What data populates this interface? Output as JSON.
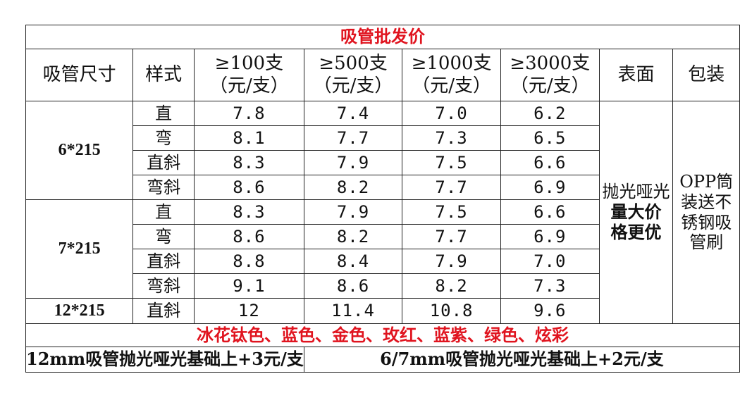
{
  "title": "吸管批发价",
  "headers": {
    "size": "吸管尺寸",
    "style": "样式",
    "tier1": "≥100支",
    "tier2": "≥500支",
    "tier3": "≥1000支",
    "tier4": "≥3000支",
    "unit": "（元/支）",
    "surface": "表面",
    "packaging": "包装"
  },
  "groups": [
    {
      "size": "6*215",
      "rows": [
        {
          "style": "直",
          "prices": [
            "7.8",
            "7.4",
            "7.0",
            "6.2"
          ]
        },
        {
          "style": "弯",
          "prices": [
            "8.1",
            "7.7",
            "7.3",
            "6.5"
          ]
        },
        {
          "style": "直斜",
          "prices": [
            "8.3",
            "7.9",
            "7.5",
            "6.6"
          ]
        },
        {
          "style": "弯斜",
          "prices": [
            "8.6",
            "8.2",
            "7.7",
            "6.9"
          ]
        }
      ]
    },
    {
      "size": "7*215",
      "rows": [
        {
          "style": "直",
          "prices": [
            "8.3",
            "7.9",
            "7.5",
            "6.6"
          ]
        },
        {
          "style": "弯",
          "prices": [
            "8.6",
            "8.2",
            "7.7",
            "6.9"
          ]
        },
        {
          "style": "直斜",
          "prices": [
            "8.8",
            "8.4",
            "7.9",
            "7.0"
          ]
        },
        {
          "style": "弯斜",
          "prices": [
            "9.1",
            "8.6",
            "8.2",
            "7.3"
          ]
        }
      ]
    },
    {
      "size": "12*215",
      "rows": [
        {
          "style": "直斜",
          "prices": [
            "12",
            "11.4",
            "10.8",
            "9.6"
          ]
        }
      ]
    }
  ],
  "surface": {
    "finish": "抛光哑光",
    "note_line1": "量大价",
    "note_line2": "格更优"
  },
  "packaging": "OPP筒装送不锈钢吸管刷",
  "colors_line": "冰花钛色、蓝色、金色、玫红、蓝紫、绿色、炫彩",
  "footer": {
    "left": "12mm吸管抛光哑光基础上+3元/支",
    "right": "6/7mm吸管抛光哑光基础上+2元/支"
  },
  "accent_color": "#e0141f"
}
